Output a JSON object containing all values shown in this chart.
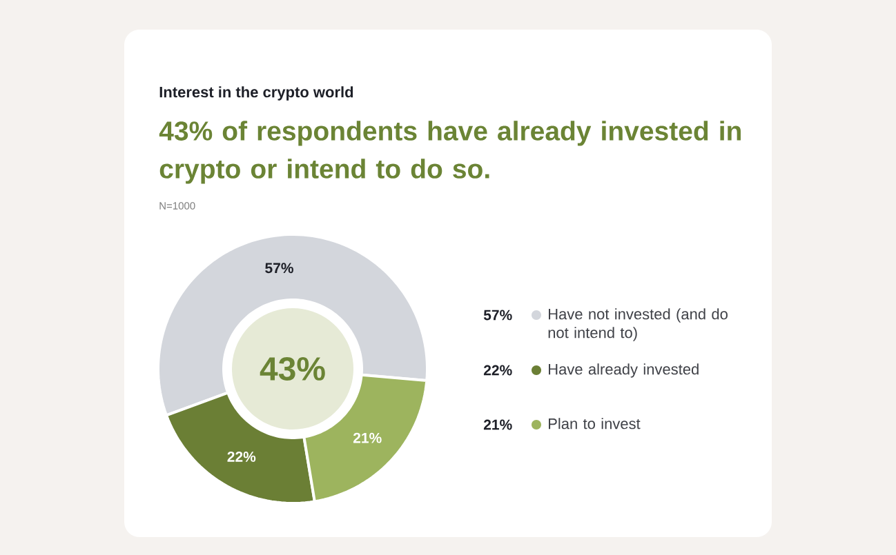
{
  "chart_data": {
    "type": "donut",
    "title": "Interest in the crypto world",
    "subtitle": "43% of respondents have already invested in crypto or intend to do so.",
    "categories": [
      "Have not invested (and do not intend to)",
      "Have already invested",
      "Plan to invest"
    ],
    "values": [
      57,
      22,
      21
    ],
    "value_labels": [
      "57%",
      "22%",
      "21%"
    ],
    "colors": [
      "#d3d6dc",
      "#6b7f35",
      "#9db45e"
    ],
    "legend": "right",
    "annotations": [
      "43%",
      "N=1000"
    ]
  }
}
